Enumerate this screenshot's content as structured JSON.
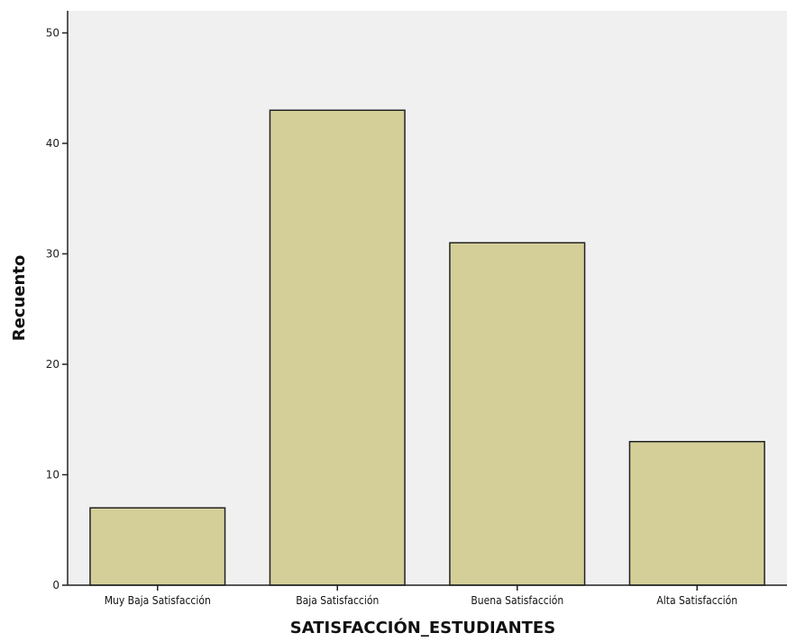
{
  "chart_data": {
    "type": "bar",
    "categories": [
      "Muy Baja Satisfacción",
      "Baja Satisfacción",
      "Buena Satisfacción",
      "Alta Satisfacción"
    ],
    "values": [
      7,
      43,
      31,
      13
    ],
    "xlabel": "SATISFACCIÓN_ESTUDIANTES",
    "ylabel": "Recuento",
    "ylim": [
      0,
      52
    ],
    "yticks": [
      0,
      10,
      20,
      30,
      40,
      50
    ],
    "grid": false,
    "colors": {
      "bar_fill": "#d4cf98",
      "bar_stroke": "#222222",
      "plot_background": "#f0f0f0"
    }
  }
}
